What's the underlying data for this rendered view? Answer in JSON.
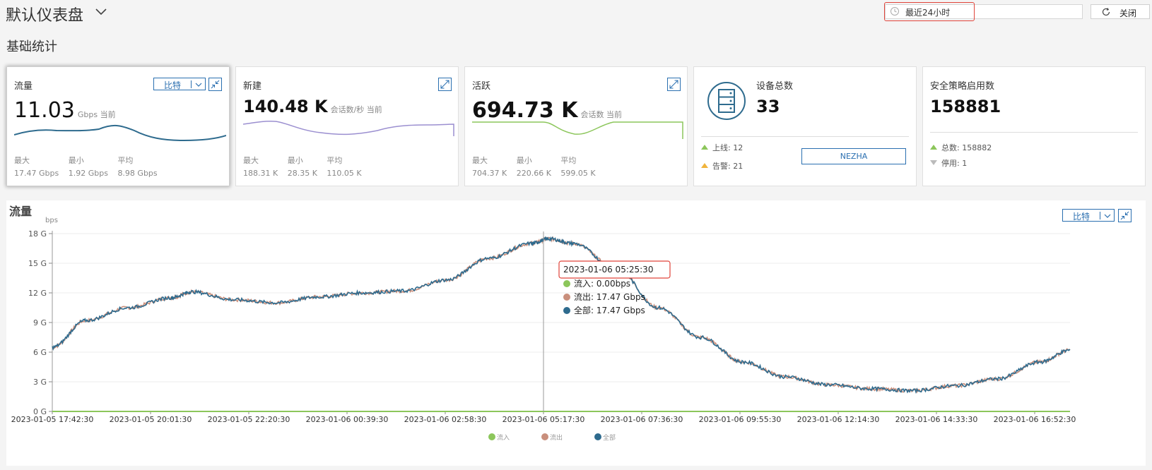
{
  "header": {
    "title": "默认仪表盘",
    "time_range": "最近24小时",
    "close_label": "关闭"
  },
  "section_title": "基础统计",
  "cards": {
    "traffic": {
      "title": "流量",
      "value": "11.03",
      "unit": "Gbps 当前",
      "select": "比特",
      "stats": [
        {
          "label": "最大",
          "value": "17.47 Gbps"
        },
        {
          "label": "最小",
          "value": "1.92 Gbps"
        },
        {
          "label": "平均",
          "value": "8.98 Gbps"
        }
      ],
      "spark_color": "#2e6b8e"
    },
    "new": {
      "title": "新建",
      "value": "140.48 K",
      "unit": "会话数/秒 当前",
      "stats": [
        {
          "label": "最大",
          "value": "188.31 K"
        },
        {
          "label": "最小",
          "value": "28.35 K"
        },
        {
          "label": "平均",
          "value": "110.05 K"
        }
      ],
      "spark_color": "#9b8fd0"
    },
    "active": {
      "title": "活跃",
      "value": "694.73 K",
      "unit": "会话数 当前",
      "stats": [
        {
          "label": "最大",
          "value": "704.37 K"
        },
        {
          "label": "最小",
          "value": "220.66 K"
        },
        {
          "label": "平均",
          "value": "599.05 K"
        }
      ],
      "spark_color": "#8cc65b"
    },
    "devices": {
      "title": "设备总数",
      "value": "33",
      "online": "上线: 12",
      "alarm": "告警: 21",
      "button": "NEZHA"
    },
    "policy": {
      "title": "安全策略启用数",
      "value": "158881",
      "total": "总数: 158882",
      "disabled": "停用: 1"
    }
  },
  "main_chart": {
    "title": "流量",
    "select": "比特",
    "tooltip": {
      "time": "2023-01-06 05:25:30",
      "rows": [
        {
          "label": "流入: 0.00bps",
          "color": "#8cc65b"
        },
        {
          "label": "流出: 17.47 Gbps",
          "color": "#c98f7c"
        },
        {
          "label": "全部: 17.47 Gbps",
          "color": "#2e6b8e"
        }
      ]
    }
  },
  "chart_data": {
    "type": "line",
    "ylabel": "bps",
    "yticks": [
      "0 G",
      "3 G",
      "6 G",
      "9 G",
      "12 G",
      "15 G",
      "18 G"
    ],
    "ylim": [
      0,
      18
    ],
    "x_tick_labels": [
      "2023-01-05 17:42:30",
      "2023-01-05 20:01:30",
      "2023-01-05 22:20:30",
      "2023-01-06 00:39:30",
      "2023-01-06 02:58:30",
      "2023-01-06 05:17:30",
      "2023-01-06 07:36:30",
      "2023-01-06 09:55:30",
      "2023-01-06 12:14:30",
      "2023-01-06 14:33:30",
      "2023-01-06 16:52:30"
    ],
    "x": [
      "2023-01-05 17:42:30",
      "2023-01-05 18:30",
      "2023-01-05 19:30",
      "2023-01-05 20:30",
      "2023-01-05 21:00",
      "2023-01-05 22:00",
      "2023-01-05 23:00",
      "2023-01-06 00:00",
      "2023-01-06 01:00",
      "2023-01-06 02:00",
      "2023-01-06 03:00",
      "2023-01-06 04:00",
      "2023-01-06 05:00",
      "2023-01-06 05:25:30",
      "2023-01-06 06:00",
      "2023-01-06 07:00",
      "2023-01-06 08:00",
      "2023-01-06 09:00",
      "2023-01-06 10:00",
      "2023-01-06 11:00",
      "2023-01-06 12:00",
      "2023-01-06 13:00",
      "2023-01-06 14:00",
      "2023-01-06 15:00",
      "2023-01-06 16:00",
      "2023-01-06 17:00",
      "2023-01-06 17:42:30"
    ],
    "series": [
      {
        "name": "流入",
        "color": "#8cc65b",
        "values": [
          0,
          0,
          0,
          0,
          0,
          0,
          0,
          0,
          0,
          0,
          0,
          0,
          0,
          0,
          0,
          0,
          0,
          0,
          0,
          0,
          0,
          0,
          0,
          0,
          0,
          0,
          0
        ]
      },
      {
        "name": "流出",
        "color": "#c98f7c",
        "values": [
          6.5,
          9.2,
          10.5,
          11.5,
          12.1,
          11.3,
          11.0,
          11.6,
          12.0,
          12.2,
          13.3,
          15.5,
          17.0,
          17.47,
          17.0,
          14.5,
          10.5,
          7.5,
          5.0,
          3.5,
          2.7,
          2.3,
          2.1,
          2.6,
          3.3,
          5.0,
          6.2
        ]
      },
      {
        "name": "全部",
        "color": "#2e6b8e",
        "values": [
          6.5,
          9.2,
          10.5,
          11.5,
          12.1,
          11.3,
          11.0,
          11.6,
          12.0,
          12.2,
          13.3,
          15.5,
          17.0,
          17.47,
          17.0,
          14.5,
          10.5,
          7.5,
          5.0,
          3.5,
          2.7,
          2.3,
          2.1,
          2.6,
          3.3,
          5.0,
          6.2
        ]
      }
    ],
    "legend": "bottom-center",
    "grid": true
  }
}
